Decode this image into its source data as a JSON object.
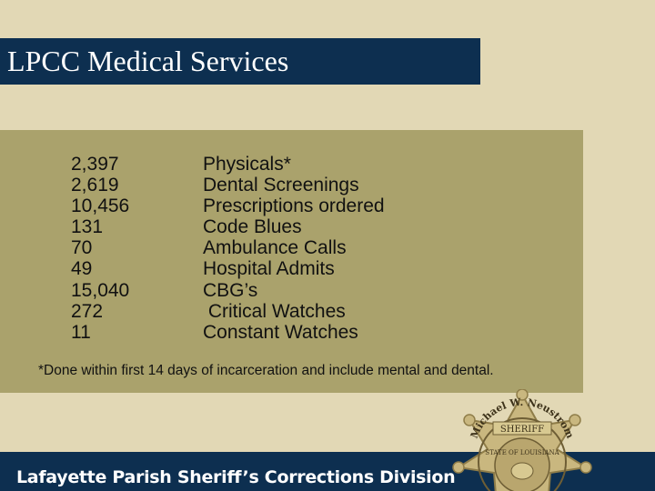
{
  "title": "LPCC Medical Services",
  "stats": [
    {
      "value": "2,397",
      "label": "Physicals*"
    },
    {
      "value": "2,619",
      "label": "Dental Screenings"
    },
    {
      "value": "10,456",
      "label": "Prescriptions ordered"
    },
    {
      "value": "131",
      "label": "Code Blues"
    },
    {
      "value": "70",
      "label": "Ambulance Calls"
    },
    {
      "value": "49",
      "label": "Hospital Admits"
    },
    {
      "value": "15,040",
      "label": "CBG’s"
    },
    {
      "value": "272",
      "label": " Critical Watches"
    },
    {
      "value": "11",
      "label": "Constant Watches"
    }
  ],
  "footnote": "*Done within first 14 days of incarceration and include mental and dental.",
  "footer": "Lafayette Parish Sheriff’s Corrections Division",
  "badge": {
    "icon": "sheriff-star-badge-icon",
    "ring_text": "Michael W. Neustrom",
    "banner_text": "SHERIFF",
    "seal_text": "STATE OF LOUISIANA"
  },
  "colors": {
    "background": "#e2d8b5",
    "title_bar": "#0d2f50",
    "panel": "#aaa26c",
    "badge_gold": "#c9b77f"
  }
}
